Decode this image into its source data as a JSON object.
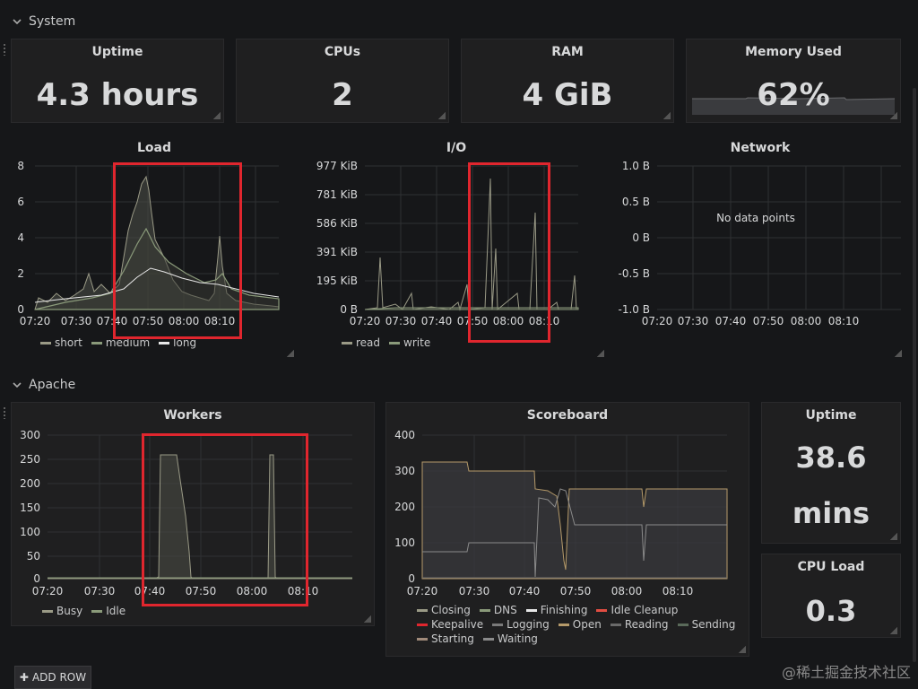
{
  "rows": {
    "system": "System",
    "apache": "Apache"
  },
  "stats": {
    "uptime": {
      "title": "Uptime",
      "value": "4.3 hours"
    },
    "cpus": {
      "title": "CPUs",
      "value": "2"
    },
    "ram": {
      "title": "RAM",
      "value": "4 GiB"
    },
    "memory_used": {
      "title": "Memory Used",
      "value": "62%"
    },
    "apache_uptime": {
      "title": "Uptime",
      "value1": "38.6",
      "value2": "mins"
    },
    "cpu_load": {
      "title": "CPU Load",
      "value": "0.3"
    }
  },
  "graphs": {
    "load": {
      "title": "Load",
      "y_ticks": [
        "8",
        "6",
        "4",
        "2",
        "0"
      ],
      "x_ticks": [
        "07:20",
        "07:30",
        "07:40",
        "07:50",
        "08:00",
        "08:10"
      ],
      "legend": [
        {
          "label": "short",
          "color": "#9a9a86"
        },
        {
          "label": "medium",
          "color": "#8a9a7a"
        },
        {
          "label": "long",
          "color": "#e8e8e8"
        }
      ]
    },
    "io": {
      "title": "I/O",
      "y_ticks": [
        "977 KiB",
        "781 KiB",
        "586 KiB",
        "391 KiB",
        "195 KiB",
        "0 B"
      ],
      "x_ticks": [
        "07:20",
        "07:30",
        "07:40",
        "07:50",
        "08:00",
        "08:10"
      ],
      "legend": [
        {
          "label": "read",
          "color": "#9a9a86"
        },
        {
          "label": "write",
          "color": "#8a9a7a"
        }
      ]
    },
    "network": {
      "title": "Network",
      "y_ticks": [
        "1.0 B",
        "0.5 B",
        "0 B",
        "-0.5 B",
        "-1.0 B"
      ],
      "x_ticks": [
        "07:20",
        "07:30",
        "07:40",
        "07:50",
        "08:00",
        "08:10"
      ],
      "no_data": "No data points"
    },
    "workers": {
      "title": "Workers",
      "y_ticks": [
        "300",
        "250",
        "200",
        "150",
        "100",
        "50",
        "0"
      ],
      "x_ticks": [
        "07:20",
        "07:30",
        "07:40",
        "07:50",
        "08:00",
        "08:10"
      ],
      "legend": [
        {
          "label": "Busy",
          "color": "#9a9a86"
        },
        {
          "label": "Idle",
          "color": "#8a9a7a"
        }
      ]
    },
    "scoreboard": {
      "title": "Scoreboard",
      "y_ticks": [
        "400",
        "300",
        "200",
        "100",
        "0"
      ],
      "x_ticks": [
        "07:20",
        "07:30",
        "07:40",
        "07:50",
        "08:00",
        "08:10"
      ],
      "legend": [
        {
          "label": "Closing",
          "color": "#9a9a86"
        },
        {
          "label": "DNS",
          "color": "#8a9a7a"
        },
        {
          "label": "Finishing",
          "color": "#e8e8e8"
        },
        {
          "label": "Idle Cleanup",
          "color": "#e24d42"
        },
        {
          "label": "Keepalive",
          "color": "#e0262e"
        },
        {
          "label": "Logging",
          "color": "#7a7a7a"
        },
        {
          "label": "Open",
          "color": "#b59a6a"
        },
        {
          "label": "Reading",
          "color": "#6a6a6a"
        },
        {
          "label": "Sending",
          "color": "#5a6a5a"
        },
        {
          "label": "Starting",
          "color": "#a08a7a"
        },
        {
          "label": "Waiting",
          "color": "#8a8a8a"
        }
      ]
    }
  },
  "add_row": "ADD ROW",
  "watermark": "@稀土掘金技术社区",
  "colors": {
    "highlight": "#e0262e",
    "background": "#161719",
    "panel": "#1f1f20"
  }
}
